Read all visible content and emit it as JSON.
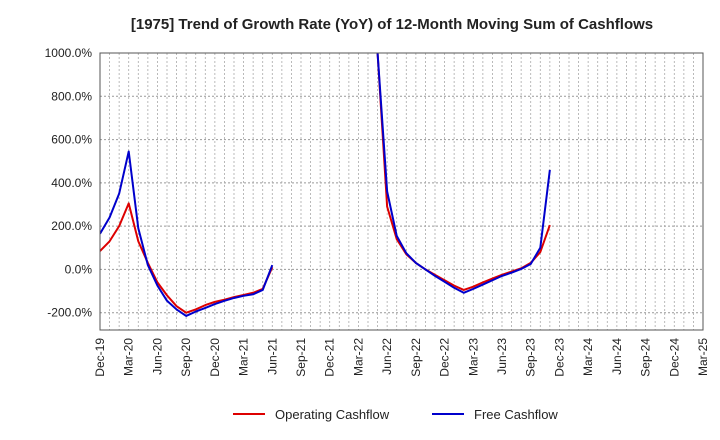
{
  "chart_data": {
    "type": "line",
    "title": "[1975]  Trend of Growth Rate (YoY) of 12-Month Moving Sum of Cashflows",
    "xlabel": "",
    "ylabel": "",
    "ylim": [
      -280,
      1000
    ],
    "y_ticks": [
      1000,
      800,
      600,
      400,
      200,
      0,
      -200
    ],
    "y_tick_labels": [
      "1000.0%",
      "800.0%",
      "600.0%",
      "400.0%",
      "200.0%",
      "0.0%",
      "-200.0%"
    ],
    "x_tick_labels": [
      "Dec-19",
      "Mar-20",
      "Jun-20",
      "Sep-20",
      "Dec-20",
      "Mar-21",
      "Jun-21",
      "Sep-21",
      "Dec-21",
      "Mar-22",
      "Jun-22",
      "Sep-22",
      "Dec-22",
      "Mar-23",
      "Jun-23",
      "Sep-23",
      "Dec-23",
      "Mar-24",
      "Jun-24",
      "Sep-24",
      "Dec-24",
      "Mar-25"
    ],
    "x_range_months": [
      0,
      63
    ],
    "grid": true,
    "legend_position": "bottom",
    "series": [
      {
        "name": "Operating Cashflow",
        "color": "#dd0000",
        "points": [
          [
            0,
            85
          ],
          [
            1,
            130
          ],
          [
            2,
            200
          ],
          [
            3,
            305
          ],
          [
            4,
            130
          ],
          [
            5,
            30
          ],
          [
            6,
            -60
          ],
          [
            7,
            -120
          ],
          [
            8,
            -170
          ],
          [
            9,
            -200
          ],
          [
            10,
            -185
          ],
          [
            11,
            -165
          ],
          [
            12,
            -150
          ],
          [
            13,
            -140
          ],
          [
            14,
            -128
          ],
          [
            15,
            -118
          ],
          [
            16,
            -108
          ],
          [
            17,
            -90
          ],
          [
            18,
            10
          ],
          null,
          [
            29,
            1000
          ],
          [
            30,
            290
          ],
          [
            31,
            140
          ],
          [
            32,
            70
          ],
          [
            33,
            30
          ],
          [
            34,
            0
          ],
          [
            35,
            -25
          ],
          [
            36,
            -50
          ],
          [
            37,
            -75
          ],
          [
            38,
            -95
          ],
          [
            39,
            -80
          ],
          [
            40,
            -60
          ],
          [
            41,
            -42
          ],
          [
            42,
            -25
          ],
          [
            43,
            -10
          ],
          [
            44,
            5
          ],
          [
            45,
            30
          ],
          [
            46,
            80
          ],
          [
            47,
            205
          ]
        ]
      },
      {
        "name": "Free Cashflow",
        "color": "#0000cc",
        "points": [
          [
            0,
            165
          ],
          [
            1,
            240
          ],
          [
            2,
            350
          ],
          [
            3,
            545
          ],
          [
            4,
            190
          ],
          [
            5,
            20
          ],
          [
            6,
            -75
          ],
          [
            7,
            -145
          ],
          [
            8,
            -185
          ],
          [
            9,
            -215
          ],
          [
            10,
            -195
          ],
          [
            11,
            -178
          ],
          [
            12,
            -160
          ],
          [
            13,
            -145
          ],
          [
            14,
            -132
          ],
          [
            15,
            -122
          ],
          [
            16,
            -115
          ],
          [
            17,
            -95
          ],
          [
            18,
            20
          ],
          null,
          [
            29,
            1000
          ],
          [
            30,
            360
          ],
          [
            31,
            155
          ],
          [
            32,
            75
          ],
          [
            33,
            30
          ],
          [
            34,
            0
          ],
          [
            35,
            -30
          ],
          [
            36,
            -57
          ],
          [
            37,
            -85
          ],
          [
            38,
            -108
          ],
          [
            39,
            -90
          ],
          [
            40,
            -70
          ],
          [
            41,
            -50
          ],
          [
            42,
            -30
          ],
          [
            43,
            -15
          ],
          [
            44,
            2
          ],
          [
            45,
            25
          ],
          [
            46,
            100
          ],
          [
            47,
            460
          ]
        ]
      }
    ]
  }
}
